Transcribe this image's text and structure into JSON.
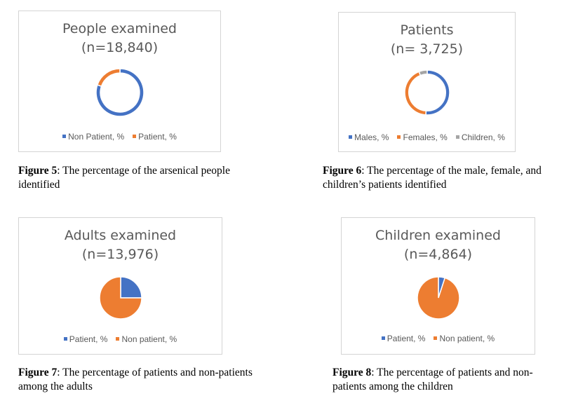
{
  "colors": {
    "blue": "#4472C4",
    "orange": "#ED7D31",
    "gray": "#A5A5A5"
  },
  "chart_data": [
    {
      "type": "pie",
      "variant": "donut",
      "title": "People examined",
      "subtitle": "(n=18,840)",
      "categories": [
        "Non Patient, %",
        "Patient, %"
      ],
      "values": [
        80.2,
        19.8
      ],
      "legend": "bottom"
    },
    {
      "type": "pie",
      "variant": "donut",
      "title": "Patients",
      "subtitle": "(n= 3,725)",
      "categories": [
        "Males, %",
        "Females, %",
        "Children, %"
      ],
      "values": [
        51,
        43,
        6
      ],
      "legend": "bottom"
    },
    {
      "type": "pie",
      "title": "Adults examined",
      "subtitle": "(n=13,976)",
      "categories": [
        "Patient, %",
        "Non patient, %"
      ],
      "values": [
        25,
        75
      ],
      "legend": "bottom"
    },
    {
      "type": "pie",
      "title": "Children examined",
      "subtitle": "(n=4,864)",
      "categories": [
        "Patient, %",
        "Non patient, %"
      ],
      "values": [
        5,
        95
      ],
      "legend": "bottom"
    }
  ],
  "captions": [
    {
      "label": "Figure 5",
      "text": ": The percentage of the arsenical people identified"
    },
    {
      "label": "Figure 6",
      "text": ": The percentage of the male, female, and children’s patients identified"
    },
    {
      "label": "Figure 7",
      "text": ": The percentage of patients and non-patients among the adults"
    },
    {
      "label": "Figure 8",
      "text": ": The percentage of patients and non-patients among the children"
    }
  ]
}
